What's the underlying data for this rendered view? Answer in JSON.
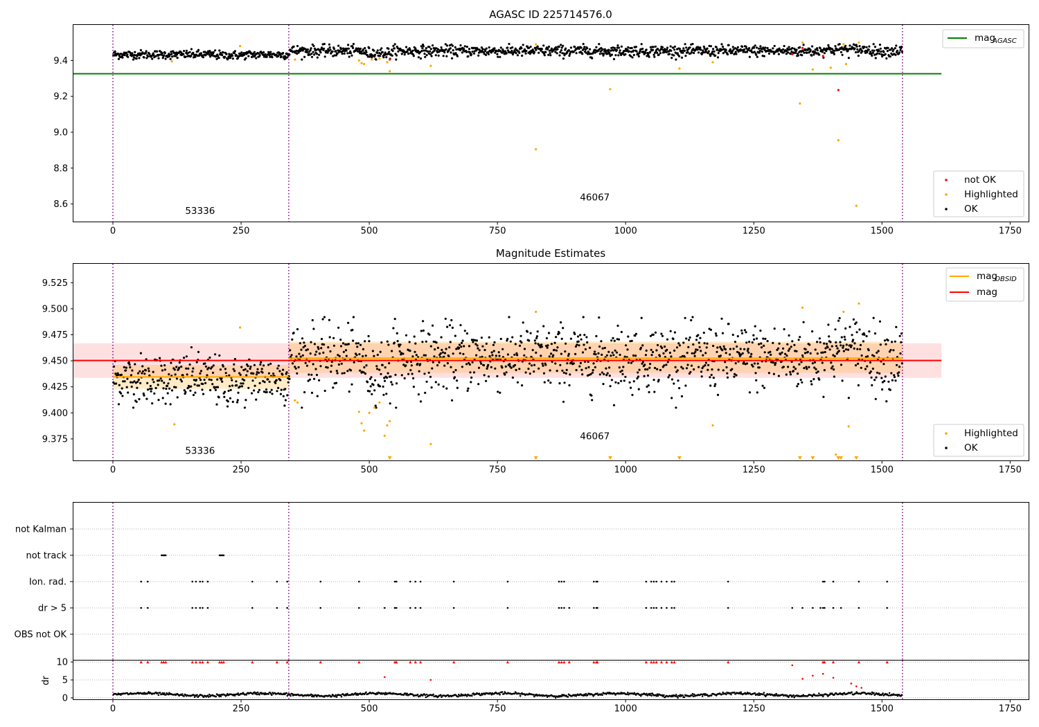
{
  "chart_data": [
    {
      "type": "scatter",
      "title": "AGASC ID 225714576.0",
      "xlim": [
        -77,
        1786
      ],
      "ylim": [
        8.5,
        9.6
      ],
      "xticks": [
        "0",
        "250",
        "500",
        "750",
        "1000",
        "1250",
        "1500",
        "1750"
      ],
      "xtick_values": [
        0,
        250,
        500,
        750,
        1000,
        1250,
        1500,
        1750
      ],
      "yticks": [
        "8.6",
        "8.8",
        "9.0",
        "9.2",
        "9.4"
      ],
      "ytick_values": [
        8.6,
        8.8,
        9.0,
        9.2,
        9.4
      ],
      "obs_boundaries": [
        0,
        343,
        1540
      ],
      "annotations": [
        {
          "text": "53336",
          "x": 170,
          "y": 8.545
        },
        {
          "text": "46067",
          "x": 940,
          "y": 8.62
        }
      ],
      "lines": [
        {
          "name": "mag_AGASC",
          "color": "#008000",
          "x": [
            -77,
            1616
          ],
          "y": [
            9.326,
            9.326
          ]
        }
      ],
      "highlighted": [
        [
          115,
          9.395
        ],
        [
          248,
          9.48
        ],
        [
          355,
          9.405
        ],
        [
          480,
          9.4
        ],
        [
          485,
          9.385
        ],
        [
          490,
          9.38
        ],
        [
          505,
          9.405
        ],
        [
          520,
          9.41
        ],
        [
          535,
          9.39
        ],
        [
          540,
          9.34
        ],
        [
          620,
          9.37
        ],
        [
          825,
          9.49
        ],
        [
          825,
          8.905
        ],
        [
          970,
          9.24
        ],
        [
          1105,
          9.355
        ],
        [
          1170,
          9.39
        ],
        [
          1340,
          9.16
        ],
        [
          1345,
          9.5
        ],
        [
          1365,
          9.35
        ],
        [
          1400,
          9.36
        ],
        [
          1415,
          8.955
        ],
        [
          1425,
          9.49
        ],
        [
          1430,
          9.38
        ],
        [
          1450,
          8.59
        ],
        [
          1455,
          9.5
        ]
      ],
      "not_ok": [
        [
          1325,
          9.435
        ],
        [
          1345,
          9.47
        ],
        [
          1385,
          9.425
        ],
        [
          1415,
          9.235
        ],
        [
          540,
          9.405
        ]
      ],
      "ok_summary": {
        "name": "OK",
        "segments": [
          {
            "x0": 0,
            "x1": 343,
            "center": 9.433,
            "spread": 0.012
          },
          {
            "x0": 343,
            "x1": 1540,
            "center": 9.453,
            "spread": 0.016
          }
        ]
      },
      "legend_upper": [
        "mag_AGASC"
      ],
      "legend_lower": [
        "not OK",
        "Highlighted",
        "OK"
      ]
    },
    {
      "type": "scatter",
      "title": "Magnitude Estimates",
      "xlim": [
        -77,
        1786
      ],
      "ylim": [
        9.354,
        9.5435
      ],
      "xticks": [
        "0",
        "250",
        "500",
        "750",
        "1000",
        "1250",
        "1500",
        "1750"
      ],
      "xtick_values": [
        0,
        250,
        500,
        750,
        1000,
        1250,
        1500,
        1750
      ],
      "yticks": [
        "9.375",
        "9.400",
        "9.425",
        "9.450",
        "9.475",
        "9.500",
        "9.525"
      ],
      "ytick_values": [
        9.375,
        9.4,
        9.425,
        9.45,
        9.475,
        9.5,
        9.525
      ],
      "obs_boundaries": [
        0,
        343,
        1540
      ],
      "annotations": [
        {
          "text": "53336",
          "x": 170,
          "y": 9.3605
        },
        {
          "text": "46067",
          "x": 940,
          "y": 9.3745
        }
      ],
      "mag_OBSID": [
        {
          "x0": 0,
          "x1": 343,
          "mag": 9.4345,
          "band": [
            9.423,
            9.446
          ]
        },
        {
          "x0": 343,
          "x1": 1540,
          "mag": 9.4525,
          "band": [
            9.4385,
            9.4685
          ]
        }
      ],
      "mag": {
        "value": 9.4503,
        "band": [
          9.4337,
          9.4668
        ],
        "x": [
          -77,
          1616
        ]
      },
      "highlighted": [
        [
          120,
          9.389
        ],
        [
          248,
          9.482
        ],
        [
          355,
          9.412
        ],
        [
          360,
          9.41
        ],
        [
          480,
          9.401
        ],
        [
          485,
          9.39
        ],
        [
          490,
          9.383
        ],
        [
          500,
          9.4
        ],
        [
          510,
          9.405
        ],
        [
          520,
          9.41
        ],
        [
          530,
          9.378
        ],
        [
          535,
          9.388
        ],
        [
          540,
          9.392
        ],
        [
          620,
          9.37
        ],
        [
          825,
          9.497
        ],
        [
          1170,
          9.388
        ],
        [
          1345,
          9.501
        ],
        [
          1410,
          9.36
        ],
        [
          1425,
          9.497
        ],
        [
          1435,
          9.387
        ],
        [
          1455,
          9.505
        ]
      ],
      "highlighted_below": [
        540,
        825,
        970,
        1105,
        1340,
        1365,
        1415,
        1420,
        1450
      ],
      "legend_upper": [
        "mag_OBSID",
        "mag"
      ],
      "legend_lower": [
        "Highlighted",
        "OK"
      ]
    },
    {
      "type": "scatter",
      "title": "",
      "xlim": [
        -77,
        1786
      ],
      "categories": [
        "not Kalman",
        "not track",
        "Ion. rad.",
        "dr > 5",
        "OBS not OK"
      ],
      "obs_boundaries": [
        0,
        343,
        1540
      ],
      "not_track_x": [
        95,
        97,
        99,
        101,
        103,
        208,
        210,
        212,
        214,
        216
      ],
      "ion_rad_x": [
        55,
        68,
        155,
        162,
        170,
        175,
        185,
        272,
        320,
        340,
        405,
        480,
        550,
        553,
        580,
        590,
        600,
        665,
        770,
        870,
        875,
        880,
        938,
        943,
        945,
        1040,
        1050,
        1055,
        1060,
        1070,
        1080,
        1090,
        1095,
        1200,
        1385,
        1388,
        1405,
        1455,
        1510
      ],
      "dr5_x": [
        55,
        68,
        155,
        162,
        170,
        175,
        185,
        272,
        320,
        340,
        405,
        480,
        530,
        550,
        553,
        580,
        590,
        600,
        665,
        770,
        870,
        875,
        880,
        890,
        938,
        943,
        945,
        1040,
        1050,
        1055,
        1060,
        1070,
        1080,
        1090,
        1095,
        1200,
        1325,
        1345,
        1365,
        1380,
        1385,
        1388,
        1405,
        1420,
        1455,
        1510
      ]
    },
    {
      "type": "scatter",
      "title": "",
      "ylabel": "dr",
      "xlim": [
        -77,
        1786
      ],
      "ylim": [
        -0.5,
        10.5
      ],
      "xticks": [
        "0",
        "250",
        "500",
        "750",
        "1000",
        "1250",
        "1500",
        "1750"
      ],
      "xtick_values": [
        0,
        250,
        500,
        750,
        1000,
        1250,
        1500,
        1750
      ],
      "yticks": [
        "0",
        "5",
        "10"
      ],
      "ytick_values": [
        0,
        5,
        10
      ],
      "obs_boundaries": [
        0,
        343,
        1540
      ],
      "capped_x": [
        55,
        68,
        95,
        99,
        103,
        155,
        162,
        170,
        175,
        185,
        208,
        212,
        216,
        272,
        320,
        340,
        405,
        480,
        550,
        553,
        580,
        590,
        600,
        665,
        770,
        870,
        875,
        880,
        890,
        938,
        943,
        945,
        1040,
        1050,
        1055,
        1060,
        1070,
        1080,
        1090,
        1095,
        1200,
        1385,
        1388,
        1405,
        1455,
        1510
      ],
      "outliers": [
        [
          530,
          5.8
        ],
        [
          620,
          5.0
        ],
        [
          1325,
          9.1
        ],
        [
          1345,
          5.3
        ],
        [
          1365,
          6.2
        ],
        [
          1385,
          6.7
        ],
        [
          1405,
          5.6
        ],
        [
          1440,
          4.0
        ],
        [
          1450,
          3.2
        ],
        [
          1460,
          2.8
        ]
      ]
    }
  ],
  "legends": {
    "p1_upper": {
      "mag": "mag",
      "sub": "AGASC"
    },
    "p1_lower": {
      "notok": "not OK",
      "highlighted": "Highlighted",
      "ok": "OK"
    },
    "p2_upper": {
      "mag": "mag",
      "sub": "OBSID",
      "mag2": "mag"
    },
    "p2_lower": {
      "highlighted": "Highlighted",
      "ok": "OK"
    }
  },
  "colors": {
    "ok": "#000000",
    "highlighted": "#ffa500",
    "not_ok": "#ff0000",
    "agasc": "#008000",
    "mag": "#ff0000",
    "obsid": "#ffa500",
    "boundary": "#800080"
  }
}
